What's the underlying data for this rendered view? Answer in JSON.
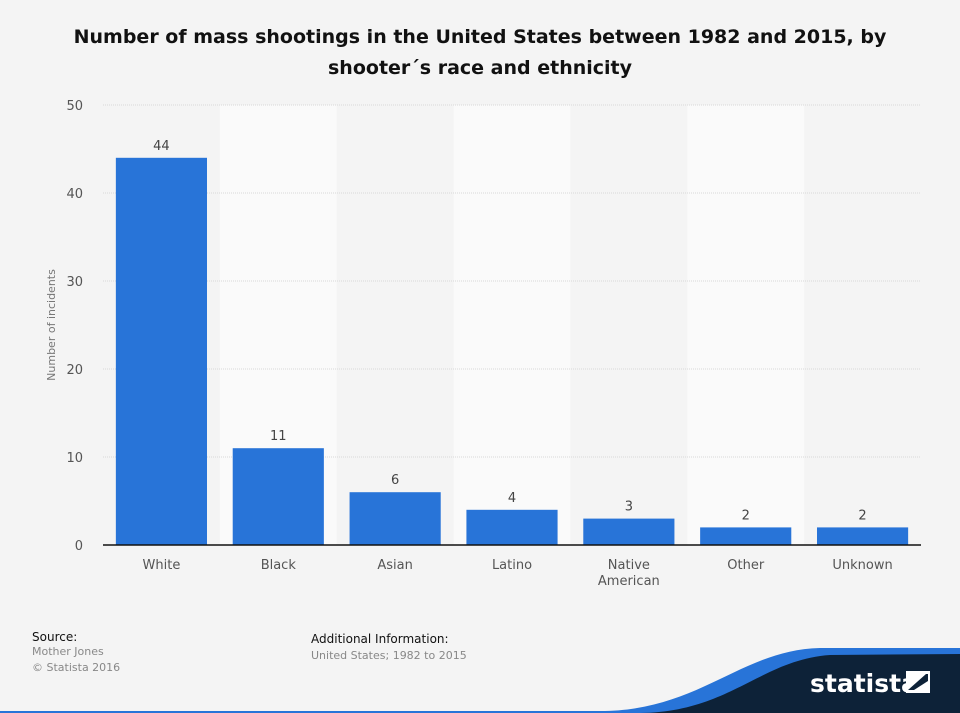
{
  "chart_data": {
    "type": "bar",
    "title": "Number of mass shootings in the United States between 1982 and 2015, by shooter´s race and ethnicity",
    "title_lines": [
      "Number of mass shootings in the United States between 1982 and 2015, by",
      "shooter´s race and ethnicity"
    ],
    "categories": [
      "White",
      "Black",
      "Asian",
      "Latino",
      "Native American",
      "Other",
      "Unknown"
    ],
    "category_lines": [
      [
        "White"
      ],
      [
        "Black"
      ],
      [
        "Asian"
      ],
      [
        "Latino"
      ],
      [
        "Native",
        "American"
      ],
      [
        "Other"
      ],
      [
        "Unknown"
      ]
    ],
    "values": [
      44,
      11,
      6,
      4,
      3,
      2,
      2
    ],
    "xlabel": "",
    "ylabel": "Number of incidents",
    "ylim": [
      0,
      50
    ],
    "yticks": [
      0,
      10,
      20,
      30,
      40,
      50
    ],
    "grid": true,
    "data_labels": true,
    "bar_color": "#2874d8"
  },
  "footer": {
    "source_label": "Source:",
    "source_lines": [
      "Mother Jones",
      "© Statista 2016"
    ],
    "additional_label": "Additional Information:",
    "additional_text": "United States; 1982 to 2015"
  },
  "branding": {
    "logo_text": "statista",
    "dark_color": "#0d2238",
    "accent_color": "#2874d8"
  }
}
